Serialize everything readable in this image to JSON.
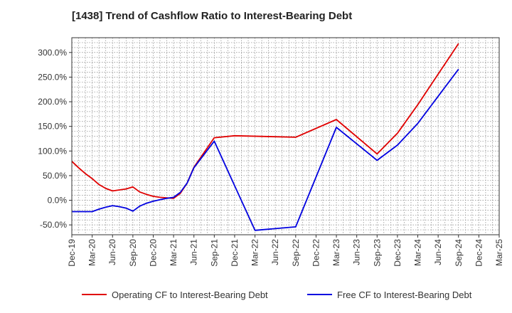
{
  "chart_data": {
    "type": "line",
    "title": "[1438]  Trend of Cashflow Ratio to Interest-Bearing Debt",
    "xlabel": "",
    "ylabel": "",
    "x_ticks": [
      "Dec-19",
      "Mar-20",
      "Jun-20",
      "Sep-20",
      "Dec-20",
      "Mar-21",
      "Jun-21",
      "Sep-21",
      "Dec-21",
      "Mar-22",
      "Jun-22",
      "Sep-22",
      "Dec-22",
      "Mar-23",
      "Jun-23",
      "Sep-23",
      "Dec-23",
      "Mar-24",
      "Jun-24",
      "Sep-24",
      "Dec-24",
      "Mar-25"
    ],
    "y_ticks": [
      "300.0%",
      "250.0%",
      "200.0%",
      "150.0%",
      "100.0%",
      "50.0%",
      "0.0%",
      "-50.0%"
    ],
    "y_tick_values": [
      300,
      250,
      200,
      150,
      100,
      50,
      0,
      -50
    ],
    "ylim": [
      -70,
      330
    ],
    "grid": true,
    "legend_position": "bottom",
    "series": [
      {
        "name": "Operating CF to Interest-Bearing Debt",
        "color": "#e00000",
        "points": [
          [
            "Dec-19",
            79
          ],
          [
            "Jan-20",
            66
          ],
          [
            "Feb-20",
            54
          ],
          [
            "Mar-20",
            44
          ],
          [
            "Apr-20",
            32
          ],
          [
            "May-20",
            24
          ],
          [
            "Jun-20",
            19
          ],
          [
            "Jul-20",
            21
          ],
          [
            "Aug-20",
            23
          ],
          [
            "Sep-20",
            27
          ],
          [
            "Oct-20",
            17
          ],
          [
            "Nov-20",
            12
          ],
          [
            "Dec-20",
            8
          ],
          [
            "Jan-21",
            6
          ],
          [
            "Feb-21",
            5
          ],
          [
            "Mar-21",
            4
          ],
          [
            "Apr-21",
            14
          ],
          [
            "May-21",
            35
          ],
          [
            "Jun-21",
            67
          ],
          [
            "Sep-21",
            127
          ],
          [
            "Dec-21",
            131
          ],
          [
            "Sep-22",
            128
          ],
          [
            "Mar-23",
            164
          ],
          [
            "Sep-23",
            94
          ],
          [
            "Dec-23",
            136
          ],
          [
            "Mar-24",
            194
          ],
          [
            "Jun-24",
            256
          ],
          [
            "Sep-24",
            318
          ]
        ]
      },
      {
        "name": "Free CF to Interest-Bearing Debt",
        "color": "#0000e0",
        "points": [
          [
            "Dec-19",
            -23
          ],
          [
            "Jan-20",
            -23
          ],
          [
            "Feb-20",
            -23
          ],
          [
            "Mar-20",
            -23
          ],
          [
            "Apr-20",
            -18
          ],
          [
            "May-20",
            -14
          ],
          [
            "Jun-20",
            -11
          ],
          [
            "Jul-20",
            -13
          ],
          [
            "Aug-20",
            -16
          ],
          [
            "Sep-20",
            -22
          ],
          [
            "Oct-20",
            -12
          ],
          [
            "Nov-20",
            -6
          ],
          [
            "Dec-20",
            -2
          ],
          [
            "Jan-21",
            1
          ],
          [
            "Feb-21",
            4
          ],
          [
            "Mar-21",
            6
          ],
          [
            "Apr-21",
            16
          ],
          [
            "May-21",
            35
          ],
          [
            "Jun-21",
            66
          ],
          [
            "Sep-21",
            120
          ],
          [
            "Mar-22",
            -61
          ],
          [
            "Sep-22",
            -54
          ],
          [
            "Mar-23",
            148
          ],
          [
            "Sep-23",
            81
          ],
          [
            "Dec-23",
            112
          ],
          [
            "Mar-24",
            156
          ],
          [
            "Jun-24",
            211
          ],
          [
            "Sep-24",
            266
          ]
        ]
      }
    ]
  }
}
